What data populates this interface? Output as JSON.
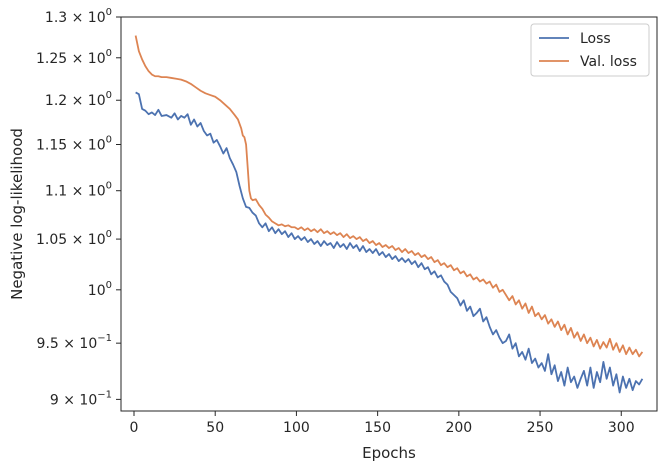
{
  "chart_data": {
    "type": "line",
    "title": "",
    "xlabel": "Epochs",
    "ylabel": "Negative log-likelihood",
    "y_scale": "log",
    "xlim": [
      -8,
      322
    ],
    "ylim": [
      0.89,
      1.3
    ],
    "x_ticks": [
      0,
      50,
      100,
      150,
      200,
      250,
      300
    ],
    "y_ticks": [
      {
        "value": 0.9,
        "mantissa": "9",
        "exp": "−1"
      },
      {
        "value": 0.95,
        "mantissa": "9.5",
        "exp": "−1"
      },
      {
        "value": 1.0,
        "mantissa": "",
        "exp": "0"
      },
      {
        "value": 1.05,
        "mantissa": "1.05",
        "exp": "0"
      },
      {
        "value": 1.1,
        "mantissa": "1.1",
        "exp": "0"
      },
      {
        "value": 1.15,
        "mantissa": "1.15",
        "exp": "0"
      },
      {
        "value": 1.2,
        "mantissa": "1.2",
        "exp": "0"
      },
      {
        "value": 1.25,
        "mantissa": "1.25",
        "exp": "0"
      },
      {
        "value": 1.3,
        "mantissa": "1.3",
        "exp": "0"
      }
    ],
    "grid": false,
    "legend_position": "top-right",
    "series": [
      {
        "name": "Loss",
        "color": "#4c72b0",
        "points": [
          [
            1,
            1.209
          ],
          [
            3,
            1.207
          ],
          [
            5,
            1.19
          ],
          [
            7,
            1.188
          ],
          [
            9,
            1.184
          ],
          [
            11,
            1.186
          ],
          [
            13,
            1.183
          ],
          [
            15,
            1.189
          ],
          [
            17,
            1.182
          ],
          [
            20,
            1.183
          ],
          [
            23,
            1.18
          ],
          [
            25,
            1.185
          ],
          [
            27,
            1.178
          ],
          [
            29,
            1.182
          ],
          [
            31,
            1.18
          ],
          [
            33,
            1.184
          ],
          [
            35,
            1.172
          ],
          [
            37,
            1.178
          ],
          [
            39,
            1.17
          ],
          [
            41,
            1.174
          ],
          [
            43,
            1.165
          ],
          [
            45,
            1.16
          ],
          [
            47,
            1.162
          ],
          [
            49,
            1.152
          ],
          [
            51,
            1.155
          ],
          [
            53,
            1.148
          ],
          [
            55,
            1.14
          ],
          [
            57,
            1.146
          ],
          [
            59,
            1.135
          ],
          [
            61,
            1.128
          ],
          [
            63,
            1.12
          ],
          [
            65,
            1.105
          ],
          [
            67,
            1.092
          ],
          [
            69,
            1.083
          ],
          [
            71,
            1.082
          ],
          [
            73,
            1.077
          ],
          [
            75,
            1.074
          ],
          [
            77,
            1.066
          ],
          [
            79,
            1.062
          ],
          [
            81,
            1.066
          ],
          [
            83,
            1.058
          ],
          [
            85,
            1.062
          ],
          [
            87,
            1.056
          ],
          [
            89,
            1.06
          ],
          [
            91,
            1.055
          ],
          [
            93,
            1.058
          ],
          [
            95,
            1.052
          ],
          [
            97,
            1.056
          ],
          [
            99,
            1.05
          ],
          [
            101,
            1.053
          ],
          [
            103,
            1.049
          ],
          [
            105,
            1.052
          ],
          [
            107,
            1.047
          ],
          [
            109,
            1.05
          ],
          [
            111,
            1.045
          ],
          [
            113,
            1.048
          ],
          [
            115,
            1.043
          ],
          [
            117,
            1.048
          ],
          [
            119,
            1.044
          ],
          [
            121,
            1.046
          ],
          [
            123,
            1.041
          ],
          [
            125,
            1.047
          ],
          [
            127,
            1.042
          ],
          [
            129,
            1.045
          ],
          [
            131,
            1.04
          ],
          [
            133,
            1.046
          ],
          [
            135,
            1.041
          ],
          [
            137,
            1.044
          ],
          [
            139,
            1.038
          ],
          [
            141,
            1.043
          ],
          [
            143,
            1.037
          ],
          [
            145,
            1.04
          ],
          [
            147,
            1.036
          ],
          [
            149,
            1.04
          ],
          [
            151,
            1.034
          ],
          [
            153,
            1.037
          ],
          [
            155,
            1.032
          ],
          [
            157,
            1.035
          ],
          [
            159,
            1.03
          ],
          [
            161,
            1.033
          ],
          [
            163,
            1.028
          ],
          [
            165,
            1.031
          ],
          [
            167,
            1.027
          ],
          [
            169,
            1.03
          ],
          [
            171,
            1.025
          ],
          [
            173,
            1.028
          ],
          [
            175,
            1.022
          ],
          [
            177,
            1.026
          ],
          [
            179,
            1.02
          ],
          [
            181,
            1.022
          ],
          [
            183,
            1.015
          ],
          [
            185,
            1.018
          ],
          [
            187,
            1.012
          ],
          [
            189,
            1.014
          ],
          [
            191,
            1.008
          ],
          [
            193,
            1.005
          ],
          [
            195,
            0.998
          ],
          [
            197,
            0.995
          ],
          [
            199,
            0.992
          ],
          [
            201,
            0.985
          ],
          [
            203,
            0.99
          ],
          [
            205,
            0.98
          ],
          [
            207,
            0.984
          ],
          [
            209,
            0.975
          ],
          [
            211,
            0.978
          ],
          [
            213,
            0.982
          ],
          [
            215,
            0.97
          ],
          [
            217,
            0.974
          ],
          [
            219,
            0.965
          ],
          [
            221,
            0.958
          ],
          [
            223,
            0.962
          ],
          [
            225,
            0.955
          ],
          [
            227,
            0.95
          ],
          [
            229,
            0.952
          ],
          [
            231,
            0.958
          ],
          [
            233,
            0.945
          ],
          [
            235,
            0.95
          ],
          [
            237,
            0.938
          ],
          [
            239,
            0.942
          ],
          [
            241,
            0.935
          ],
          [
            243,
            0.945
          ],
          [
            245,
            0.932
          ],
          [
            247,
            0.936
          ],
          [
            249,
            0.928
          ],
          [
            251,
            0.932
          ],
          [
            253,
            0.925
          ],
          [
            255,
            0.94
          ],
          [
            257,
            0.922
          ],
          [
            259,
            0.93
          ],
          [
            261,
            0.916
          ],
          [
            263,
            0.924
          ],
          [
            265,
            0.912
          ],
          [
            267,
            0.928
          ],
          [
            269,
            0.915
          ],
          [
            271,
            0.92
          ],
          [
            273,
            0.91
          ],
          [
            275,
            0.918
          ],
          [
            277,
            0.925
          ],
          [
            279,
            0.912
          ],
          [
            281,
            0.928
          ],
          [
            283,
            0.91
          ],
          [
            285,
            0.924
          ],
          [
            287,
            0.915
          ],
          [
            289,
            0.933
          ],
          [
            291,
            0.918
          ],
          [
            293,
            0.928
          ],
          [
            295,
            0.912
          ],
          [
            297,
            0.922
          ],
          [
            299,
            0.906
          ],
          [
            301,
            0.92
          ],
          [
            303,
            0.91
          ],
          [
            305,
            0.918
          ],
          [
            307,
            0.908
          ],
          [
            309,
            0.916
          ],
          [
            311,
            0.913
          ],
          [
            313,
            0.918
          ]
        ]
      },
      {
        "name": "Val. loss",
        "color": "#dd8452",
        "points": [
          [
            1,
            1.277
          ],
          [
            3,
            1.258
          ],
          [
            5,
            1.248
          ],
          [
            7,
            1.24
          ],
          [
            9,
            1.234
          ],
          [
            11,
            1.23
          ],
          [
            13,
            1.228
          ],
          [
            15,
            1.228
          ],
          [
            17,
            1.227
          ],
          [
            20,
            1.227
          ],
          [
            23,
            1.226
          ],
          [
            26,
            1.225
          ],
          [
            29,
            1.224
          ],
          [
            32,
            1.222
          ],
          [
            35,
            1.219
          ],
          [
            38,
            1.215
          ],
          [
            41,
            1.211
          ],
          [
            44,
            1.208
          ],
          [
            47,
            1.206
          ],
          [
            50,
            1.204
          ],
          [
            53,
            1.2
          ],
          [
            56,
            1.195
          ],
          [
            59,
            1.19
          ],
          [
            62,
            1.183
          ],
          [
            64,
            1.178
          ],
          [
            66,
            1.168
          ],
          [
            67,
            1.16
          ],
          [
            68,
            1.158
          ],
          [
            69,
            1.15
          ],
          [
            70,
            1.125
          ],
          [
            71,
            1.1
          ],
          [
            72,
            1.092
          ],
          [
            73,
            1.09
          ],
          [
            75,
            1.091
          ],
          [
            77,
            1.085
          ],
          [
            79,
            1.081
          ],
          [
            81,
            1.075
          ],
          [
            83,
            1.072
          ],
          [
            85,
            1.068
          ],
          [
            87,
            1.066
          ],
          [
            89,
            1.064
          ],
          [
            91,
            1.065
          ],
          [
            93,
            1.063
          ],
          [
            95,
            1.064
          ],
          [
            97,
            1.062
          ],
          [
            99,
            1.062
          ],
          [
            101,
            1.06
          ],
          [
            103,
            1.062
          ],
          [
            105,
            1.059
          ],
          [
            107,
            1.061
          ],
          [
            109,
            1.058
          ],
          [
            111,
            1.06
          ],
          [
            113,
            1.057
          ],
          [
            115,
            1.06
          ],
          [
            117,
            1.056
          ],
          [
            119,
            1.058
          ],
          [
            121,
            1.055
          ],
          [
            123,
            1.057
          ],
          [
            125,
            1.054
          ],
          [
            127,
            1.056
          ],
          [
            129,
            1.052
          ],
          [
            131,
            1.055
          ],
          [
            133,
            1.051
          ],
          [
            135,
            1.053
          ],
          [
            137,
            1.05
          ],
          [
            139,
            1.052
          ],
          [
            141,
            1.048
          ],
          [
            143,
            1.05
          ],
          [
            145,
            1.046
          ],
          [
            147,
            1.048
          ],
          [
            149,
            1.044
          ],
          [
            151,
            1.046
          ],
          [
            153,
            1.042
          ],
          [
            155,
            1.044
          ],
          [
            157,
            1.041
          ],
          [
            159,
            1.043
          ],
          [
            161,
            1.039
          ],
          [
            163,
            1.041
          ],
          [
            165,
            1.037
          ],
          [
            167,
            1.04
          ],
          [
            169,
            1.036
          ],
          [
            171,
            1.038
          ],
          [
            173,
            1.034
          ],
          [
            175,
            1.036
          ],
          [
            177,
            1.032
          ],
          [
            179,
            1.034
          ],
          [
            181,
            1.03
          ],
          [
            183,
            1.032
          ],
          [
            185,
            1.027
          ],
          [
            187,
            1.029
          ],
          [
            189,
            1.024
          ],
          [
            191,
            1.026
          ],
          [
            193,
            1.022
          ],
          [
            195,
            1.024
          ],
          [
            197,
            1.019
          ],
          [
            199,
            1.021
          ],
          [
            201,
            1.016
          ],
          [
            203,
            1.018
          ],
          [
            205,
            1.013
          ],
          [
            207,
            1.015
          ],
          [
            209,
            1.01
          ],
          [
            211,
            1.012
          ],
          [
            213,
            1.008
          ],
          [
            215,
            1.01
          ],
          [
            217,
            1.006
          ],
          [
            219,
            1.008
          ],
          [
            221,
            1.002
          ],
          [
            223,
            1.005
          ],
          [
            225,
            0.998
          ],
          [
            227,
            1.0
          ],
          [
            229,
            0.995
          ],
          [
            231,
            0.99
          ],
          [
            233,
            0.994
          ],
          [
            235,
            0.986
          ],
          [
            237,
            0.99
          ],
          [
            239,
            0.982
          ],
          [
            241,
            0.987
          ],
          [
            243,
            0.978
          ],
          [
            245,
            0.984
          ],
          [
            247,
            0.975
          ],
          [
            249,
            0.978
          ],
          [
            251,
            0.972
          ],
          [
            253,
            0.976
          ],
          [
            255,
            0.968
          ],
          [
            257,
            0.972
          ],
          [
            259,
            0.965
          ],
          [
            261,
            0.97
          ],
          [
            263,
            0.962
          ],
          [
            265,
            0.967
          ],
          [
            267,
            0.958
          ],
          [
            269,
            0.964
          ],
          [
            271,
            0.955
          ],
          [
            273,
            0.96
          ],
          [
            275,
            0.952
          ],
          [
            277,
            0.958
          ],
          [
            279,
            0.95
          ],
          [
            281,
            0.955
          ],
          [
            283,
            0.947
          ],
          [
            285,
            0.953
          ],
          [
            287,
            0.945
          ],
          [
            289,
            0.951
          ],
          [
            291,
            0.946
          ],
          [
            293,
            0.954
          ],
          [
            295,
            0.944
          ],
          [
            297,
            0.95
          ],
          [
            299,
            0.942
          ],
          [
            301,
            0.948
          ],
          [
            303,
            0.94
          ],
          [
            305,
            0.946
          ],
          [
            307,
            0.94
          ],
          [
            309,
            0.944
          ],
          [
            311,
            0.938
          ],
          [
            313,
            0.942
          ]
        ]
      }
    ]
  }
}
